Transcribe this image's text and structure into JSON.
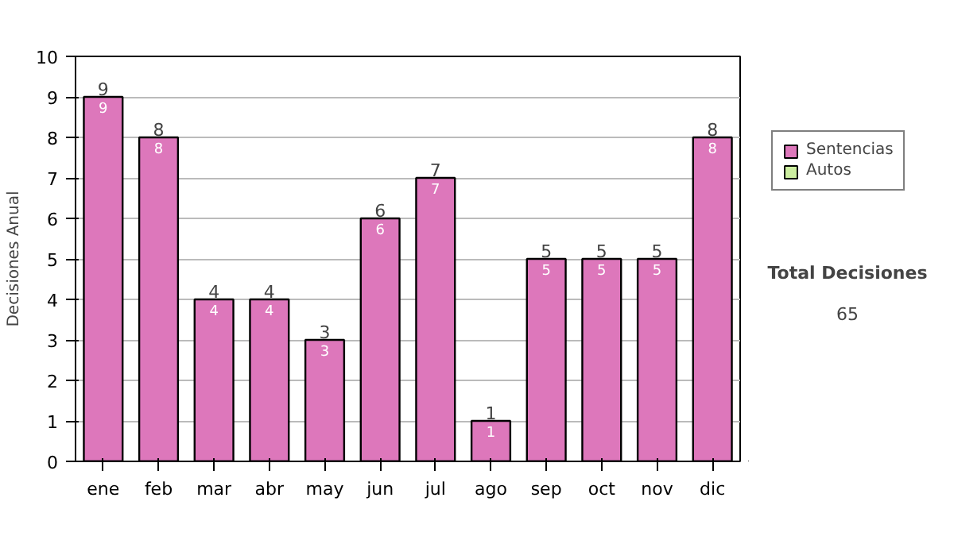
{
  "chart_data": {
    "type": "bar",
    "ylabel": "Decisiones Anual",
    "categories": [
      "ene",
      "feb",
      "mar",
      "abr",
      "may",
      "jun",
      "jul",
      "ago",
      "sep",
      "oct",
      "nov",
      "dic"
    ],
    "series": [
      {
        "name": "Sentencias",
        "color": "#dd77bb",
        "values": [
          9,
          8,
          4,
          4,
          3,
          6,
          7,
          1,
          5,
          5,
          5,
          8
        ],
        "value_labels": [
          "9",
          "8",
          "4",
          "4",
          "3",
          "6",
          "7",
          "1",
          "5",
          "5",
          "5",
          "8"
        ]
      },
      {
        "name": "Autos",
        "color": "#cceea0",
        "values": [
          0,
          0,
          0,
          0,
          0,
          0,
          0,
          0,
          0,
          0,
          0,
          0
        ]
      }
    ],
    "totals": [
      "9",
      "8",
      "4",
      "4",
      "3",
      "6",
      "7",
      "1",
      "5",
      "5",
      "5",
      "8"
    ],
    "ylim": [
      0,
      10
    ],
    "yticks": [
      0,
      1,
      2,
      3,
      4,
      5,
      6,
      7,
      8,
      9,
      10
    ],
    "grid": "y",
    "legend": "right",
    "annotations": [
      "Total Decisiones",
      "65"
    ]
  }
}
